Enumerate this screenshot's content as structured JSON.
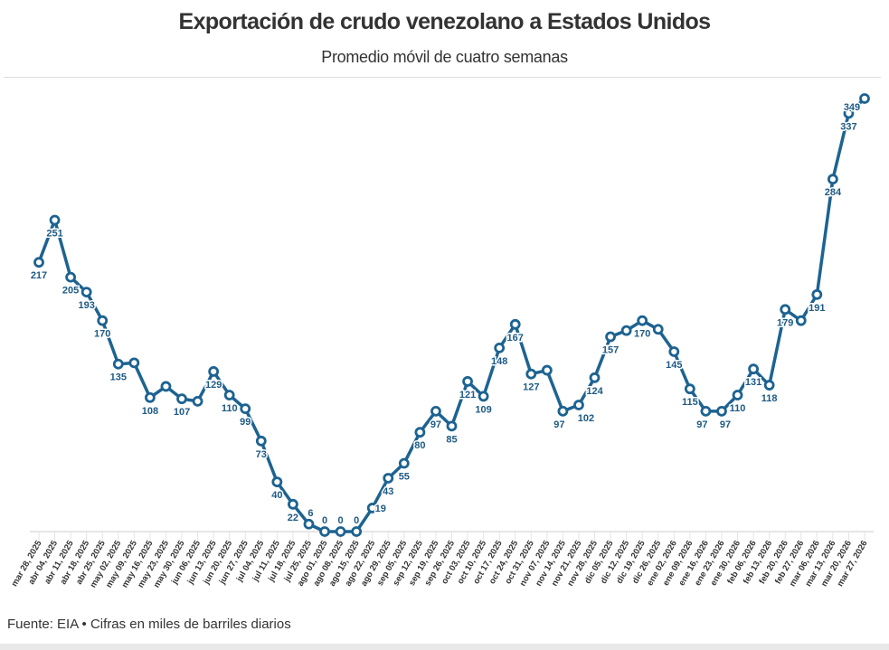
{
  "chart_data": {
    "type": "line",
    "title": "Exportación de crudo venezolano a Estados Unidos",
    "subtitle": "Promedio móvil de cuatro semanas",
    "xlabel": "",
    "ylabel": "",
    "ylim": [
      0,
      349
    ],
    "grid": false,
    "color": "#1d6391",
    "categories": [
      "mar 28, 2025",
      "abr 04, 2025",
      "abr 11, 2025",
      "abr 18, 2025",
      "abr 25, 2025",
      "may 02, 2025",
      "may 09, 2025",
      "may 16, 2025",
      "may 23, 2025",
      "may 30, 2025",
      "jun 06, 2025",
      "jun 13, 2025",
      "jun 20, 2025",
      "jun 27, 2025",
      "jul 04, 2025",
      "jul 11, 2025",
      "jul 18, 2025",
      "jul 25, 2025",
      "ago 01, 2025",
      "ago 08, 2025",
      "ago 15, 2025",
      "ago 22, 2025",
      "ago 29, 2025",
      "sep 05, 2025",
      "sep 12, 2025",
      "sep 19, 2025",
      "sep 26, 2025",
      "oct 03, 2025",
      "oct 10, 2025",
      "oct 17, 2025",
      "oct 24, 2025",
      "oct 31, 2025",
      "nov 07, 2025",
      "nov 14, 2025",
      "nov 21, 2025",
      "nov 28, 2025",
      "dic 05, 2025",
      "dic 12, 2025",
      "dic 19, 2025",
      "dic 26, 2025",
      "ene 02, 2026",
      "ene 09, 2026",
      "ene 16, 2026",
      "ene 23, 2026",
      "ene 30, 2026",
      "feb 06, 2026",
      "feb 13, 2026",
      "feb 20, 2026",
      "feb 27, 2026",
      "mar 06, 2026",
      "mar 13, 2026",
      "mar 20, 2026",
      "mar 27, 2026"
    ],
    "values": [
      217,
      251,
      205,
      193,
      170,
      135,
      136,
      108,
      117,
      107,
      105,
      129,
      110,
      99,
      73,
      40,
      22,
      6,
      0,
      0,
      0,
      19,
      43,
      55,
      80,
      97,
      85,
      121,
      109,
      148,
      167,
      127,
      130,
      97,
      102,
      124,
      157,
      162,
      170,
      163,
      145,
      115,
      97,
      97,
      110,
      131,
      118,
      179,
      170,
      191,
      284,
      337,
      349
    ],
    "data_labels": [
      "217",
      "251",
      "205",
      "193",
      "170",
      "135",
      "",
      "108",
      "",
      "107",
      "",
      "129",
      "110",
      "99",
      "73",
      "40",
      "22",
      "6",
      "0",
      "0",
      "0",
      "19",
      "43",
      "55",
      "80",
      "97",
      "85",
      "121",
      "109",
      "148",
      "167",
      "127",
      "",
      "97",
      "102",
      "124",
      "157",
      "",
      "170",
      "",
      "145",
      "115",
      "97",
      "97",
      "110",
      "131",
      "118",
      "179",
      "",
      "191",
      "284",
      "337",
      "349"
    ]
  },
  "footer": "Fuente: EIA • Cifras en miles de barriles diarios"
}
